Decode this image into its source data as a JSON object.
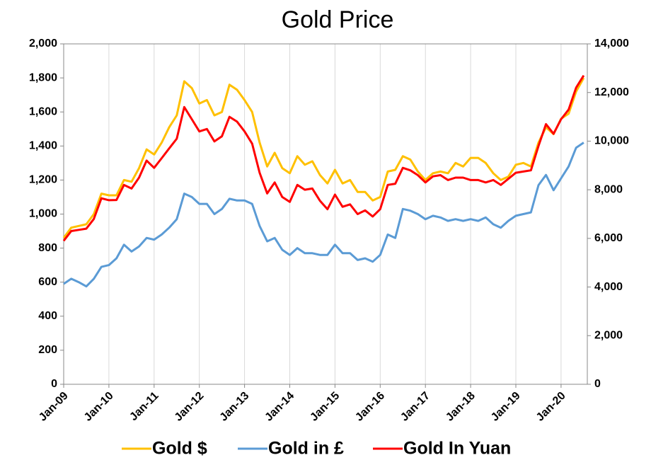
{
  "chart_data": {
    "type": "line",
    "title": "Gold Price",
    "categories": [
      "Jan-09",
      null,
      null,
      null,
      null,
      null,
      "Jan-10",
      null,
      null,
      null,
      null,
      null,
      "Jan-11",
      null,
      null,
      null,
      null,
      null,
      "Jan-12",
      null,
      null,
      null,
      null,
      null,
      "Jan-13",
      null,
      null,
      null,
      null,
      null,
      "Jan-14",
      null,
      null,
      null,
      null,
      null,
      "Jan-15",
      null,
      null,
      null,
      null,
      null,
      "Jan-16",
      null,
      null,
      null,
      null,
      null,
      "Jan-17",
      null,
      null,
      null,
      null,
      null,
      "Jan-18",
      null,
      null,
      null,
      null,
      null,
      "Jan-19",
      null,
      null,
      null,
      null,
      null,
      "Jan-20",
      null,
      null,
      null
    ],
    "series": [
      {
        "name": "Gold $",
        "color": "#ffc000",
        "values": [
          860,
          920,
          930,
          940,
          1000,
          1120,
          1110,
          1110,
          1200,
          1190,
          1270,
          1380,
          1350,
          1420,
          1510,
          1580,
          1780,
          1740,
          1650,
          1670,
          1580,
          1600,
          1760,
          1730,
          1670,
          1600,
          1420,
          1280,
          1360,
          1270,
          1240,
          1340,
          1290,
          1310,
          1230,
          1180,
          1260,
          1180,
          1200,
          1130,
          1130,
          1080,
          1100,
          1250,
          1260,
          1340,
          1320,
          1250,
          1200,
          1240,
          1250,
          1240,
          1300,
          1280,
          1330,
          1330,
          1300,
          1240,
          1200,
          1220,
          1290,
          1300,
          1280,
          1420,
          1510,
          1470,
          1560,
          1590,
          1720,
          1800
        ]
      },
      {
        "name": "Gold in £",
        "color": "#5b9bd5",
        "values": [
          590,
          620,
          600,
          575,
          620,
          690,
          700,
          740,
          820,
          780,
          810,
          860,
          850,
          880,
          920,
          970,
          1120,
          1100,
          1060,
          1060,
          1000,
          1030,
          1090,
          1080,
          1080,
          1060,
          930,
          840,
          860,
          790,
          760,
          800,
          770,
          770,
          760,
          760,
          820,
          770,
          770,
          730,
          740,
          720,
          760,
          880,
          860,
          1030,
          1020,
          1000,
          970,
          990,
          980,
          960,
          970,
          960,
          970,
          960,
          980,
          940,
          920,
          960,
          990,
          1000,
          1010,
          1170,
          1230,
          1140,
          1210,
          1280,
          1390,
          1420
        ]
      },
      {
        "name": "Gold In Yuan",
        "color": "#ff0000",
        "axis": "y2",
        "values": [
          5900,
          6300,
          6350,
          6400,
          6800,
          7650,
          7570,
          7580,
          8200,
          8050,
          8500,
          9200,
          8900,
          9300,
          9700,
          10100,
          11400,
          10900,
          10400,
          10500,
          9990,
          10200,
          11000,
          10800,
          10400,
          9900,
          8700,
          7850,
          8300,
          7700,
          7500,
          8200,
          8000,
          8050,
          7550,
          7200,
          7800,
          7300,
          7400,
          7000,
          7150,
          6900,
          7200,
          8200,
          8250,
          8900,
          8800,
          8600,
          8300,
          8550,
          8600,
          8400,
          8500,
          8500,
          8400,
          8400,
          8300,
          8400,
          8200,
          8450,
          8700,
          8750,
          8800,
          9800,
          10700,
          10300,
          10900,
          11300,
          12200,
          12700
        ]
      }
    ],
    "ylim": [
      0,
      2000
    ],
    "yticks": [
      0,
      200,
      400,
      600,
      800,
      {
        "value": 1000,
        "label": "1,000"
      },
      {
        "value": 1200,
        "label": "1,200"
      },
      {
        "value": 1400,
        "label": "1,400"
      },
      {
        "value": 1600,
        "label": "1,600"
      },
      {
        "value": 1800,
        "label": "1,800"
      },
      {
        "value": 2000,
        "label": "2,000"
      }
    ],
    "y2lim": [
      0,
      14000
    ],
    "y2ticks": [
      0,
      {
        "value": 2000,
        "label": "2,000"
      },
      {
        "value": 4000,
        "label": "4,000"
      },
      {
        "value": 6000,
        "label": "6,000"
      },
      {
        "value": 8000,
        "label": "8,000"
      },
      {
        "value": 10000,
        "label": "10,000"
      },
      {
        "value": 12000,
        "label": "12,000"
      },
      {
        "value": 14000,
        "label": "14,000"
      }
    ],
    "grid": true,
    "legend": "bottom"
  }
}
